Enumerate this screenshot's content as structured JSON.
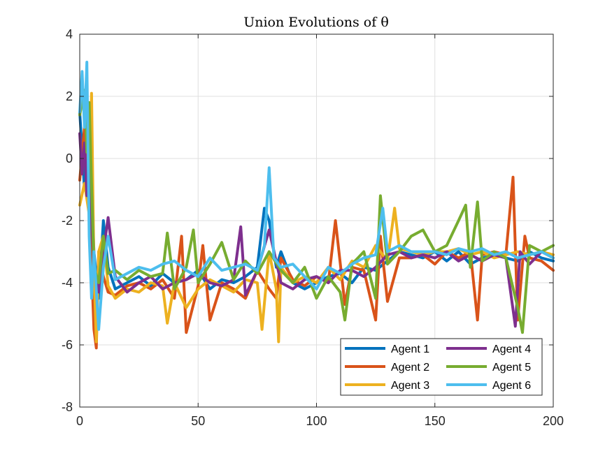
{
  "chart_data": {
    "type": "line",
    "title": "Union Evolutions of θ",
    "xlabel": "",
    "ylabel": "",
    "xlim": [
      0,
      200
    ],
    "ylim": [
      -8,
      4
    ],
    "xticks": [
      "0",
      "50",
      "100",
      "150",
      "200"
    ],
    "yticks": [
      "4",
      "2",
      "0",
      "-2",
      "-4",
      "-6",
      "-8"
    ],
    "grid": true,
    "legend_position": "bottom-right",
    "legend_columns": 2,
    "series": [
      {
        "name": "Agent 1",
        "color": "#0072BD",
        "x": [
          0,
          2,
          4,
          6,
          8,
          10,
          12,
          15,
          20,
          25,
          30,
          35,
          40,
          45,
          50,
          55,
          60,
          65,
          70,
          75,
          78,
          80,
          83,
          85,
          90,
          95,
          100,
          105,
          110,
          115,
          120,
          125,
          130,
          135,
          140,
          145,
          150,
          155,
          160,
          165,
          170,
          175,
          180,
          185,
          190,
          195,
          200
        ],
        "values": [
          1.5,
          -1.0,
          1.0,
          -3.0,
          -4.5,
          -2.0,
          -3.5,
          -4.2,
          -4.0,
          -3.8,
          -4.1,
          -3.7,
          -4.0,
          -3.9,
          -3.6,
          -4.2,
          -3.9,
          -4.0,
          -3.8,
          -3.5,
          -1.6,
          -2.0,
          -3.5,
          -3.0,
          -4.0,
          -4.2,
          -4.0,
          -3.8,
          -3.7,
          -4.0,
          -3.5,
          -3.6,
          -3.3,
          -3.0,
          -3.1,
          -3.2,
          -3.0,
          -3.3,
          -3.0,
          -3.4,
          -3.2,
          -3.1,
          -3.2,
          -3.3,
          -3.0,
          -3.2,
          -3.3
        ]
      },
      {
        "name": "Agent 2",
        "color": "#D95319",
        "x": [
          0,
          2,
          4,
          6,
          7,
          8,
          10,
          12,
          15,
          20,
          25,
          30,
          35,
          40,
          43,
          45,
          50,
          52,
          55,
          60,
          65,
          70,
          75,
          80,
          83,
          85,
          90,
          95,
          100,
          105,
          108,
          112,
          115,
          120,
          125,
          127,
          130,
          135,
          140,
          145,
          150,
          155,
          160,
          165,
          168,
          170,
          175,
          180,
          183,
          185,
          188,
          190,
          195,
          200
        ],
        "values": [
          -0.7,
          1.0,
          -1.5,
          -5.5,
          -6.1,
          -3.0,
          -3.8,
          -4.3,
          -4.4,
          -4.1,
          -4.0,
          -4.2,
          -3.9,
          -4.5,
          -2.5,
          -5.6,
          -4.1,
          -2.8,
          -5.2,
          -4.0,
          -4.2,
          -4.5,
          -3.6,
          -4.2,
          -4.5,
          -3.2,
          -3.9,
          -4.1,
          -3.8,
          -4.0,
          -2.0,
          -4.7,
          -3.5,
          -3.6,
          -5.2,
          -2.5,
          -4.6,
          -3.2,
          -3.2,
          -3.1,
          -3.4,
          -3.0,
          -3.2,
          -3.0,
          -5.2,
          -3.1,
          -3.0,
          -3.1,
          -0.6,
          -5.2,
          -2.5,
          -3.2,
          -3.3,
          -3.6
        ]
      },
      {
        "name": "Agent 3",
        "color": "#EDB120",
        "x": [
          0,
          2,
          4,
          5,
          6,
          7,
          8,
          10,
          12,
          15,
          20,
          25,
          30,
          35,
          37,
          40,
          45,
          50,
          55,
          60,
          65,
          70,
          75,
          77,
          80,
          83,
          84,
          85,
          90,
          95,
          100,
          105,
          110,
          115,
          120,
          125,
          130,
          133,
          135,
          140,
          145,
          150,
          155,
          160,
          165,
          170,
          175,
          180,
          185,
          190,
          195,
          200
        ],
        "values": [
          -1.5,
          -0.8,
          -1.8,
          2.1,
          -3.5,
          -5.9,
          -3.0,
          -2.5,
          -4.1,
          -4.5,
          -4.2,
          -4.3,
          -4.0,
          -4.1,
          -5.3,
          -4.0,
          -4.8,
          -4.2,
          -3.9,
          -4.1,
          -4.3,
          -3.9,
          -4.0,
          -5.5,
          -3.0,
          -4.2,
          -5.9,
          -3.5,
          -4.0,
          -3.8,
          -4.0,
          -3.5,
          -3.9,
          -3.3,
          -3.5,
          -2.8,
          -3.3,
          -1.6,
          -2.9,
          -3.0,
          -3.1,
          -3.0,
          -3.0,
          -2.9,
          -3.1,
          -3.0,
          -3.2,
          -3.1,
          -3.0,
          -3.1,
          -3.0,
          -3.1
        ]
      },
      {
        "name": "Agent 4",
        "color": "#7E2F8E",
        "x": [
          0,
          1,
          2,
          3,
          4,
          5,
          6,
          8,
          10,
          12,
          15,
          20,
          25,
          30,
          35,
          40,
          45,
          50,
          55,
          60,
          65,
          68,
          70,
          75,
          80,
          85,
          90,
          95,
          100,
          105,
          110,
          115,
          120,
          125,
          130,
          135,
          140,
          145,
          150,
          155,
          160,
          165,
          170,
          175,
          180,
          184,
          186,
          190,
          195,
          200
        ],
        "values": [
          0.8,
          -0.5,
          0.5,
          -1.2,
          0.9,
          -2.0,
          -3.5,
          -4.3,
          -3.0,
          -1.9,
          -3.8,
          -4.3,
          -4.0,
          -3.8,
          -4.2,
          -4.0,
          -3.9,
          -3.7,
          -4.0,
          -4.1,
          -3.9,
          -2.2,
          -4.4,
          -3.6,
          -2.3,
          -4.0,
          -4.2,
          -3.9,
          -3.8,
          -4.0,
          -3.6,
          -3.6,
          -3.8,
          -3.5,
          -3.1,
          -3.0,
          -3.2,
          -3.1,
          -3.2,
          -3.0,
          -3.3,
          -3.1,
          -3.3,
          -3.1,
          -3.2,
          -5.4,
          -3.0,
          -3.4,
          -3.0,
          -3.2
        ]
      },
      {
        "name": "Agent 5",
        "color": "#77AC30",
        "x": [
          0,
          2,
          3,
          4,
          6,
          8,
          10,
          12,
          15,
          20,
          25,
          30,
          35,
          37,
          40,
          45,
          48,
          50,
          55,
          60,
          65,
          70,
          75,
          80,
          85,
          90,
          95,
          100,
          105,
          110,
          112,
          115,
          120,
          125,
          127,
          130,
          135,
          140,
          145,
          150,
          155,
          160,
          163,
          165,
          168,
          170,
          175,
          180,
          185,
          187,
          190,
          195,
          200
        ],
        "values": [
          1.4,
          2.2,
          0.2,
          1.8,
          -3.5,
          -4.0,
          -2.5,
          -3.7,
          -3.6,
          -3.9,
          -3.6,
          -3.8,
          -3.7,
          -2.4,
          -4.2,
          -3.5,
          -2.3,
          -4.0,
          -3.4,
          -2.7,
          -3.9,
          -3.3,
          -3.7,
          -3.0,
          -3.6,
          -4.0,
          -3.5,
          -4.5,
          -3.8,
          -4.3,
          -5.2,
          -3.4,
          -3.0,
          -4.5,
          -1.2,
          -3.4,
          -3.0,
          -2.5,
          -2.3,
          -3.0,
          -2.8,
          -2.0,
          -1.5,
          -3.5,
          -1.4,
          -3.3,
          -3.0,
          -3.2,
          -4.8,
          -5.6,
          -2.8,
          -3.0,
          -2.8
        ]
      },
      {
        "name": "Agent 6",
        "color": "#4DBEEE",
        "x": [
          0,
          1,
          2,
          3,
          4,
          5,
          6,
          8,
          10,
          12,
          15,
          20,
          25,
          30,
          35,
          40,
          45,
          50,
          55,
          60,
          65,
          70,
          75,
          78,
          80,
          82,
          85,
          90,
          95,
          100,
          105,
          110,
          115,
          120,
          125,
          128,
          130,
          135,
          140,
          145,
          150,
          155,
          160,
          165,
          170,
          175,
          180,
          185,
          190,
          195,
          200
        ],
        "values": [
          1.5,
          2.8,
          1.0,
          3.1,
          -2.5,
          -4.5,
          -3.0,
          -5.5,
          -3.5,
          -2.5,
          -3.9,
          -3.7,
          -3.5,
          -3.6,
          -3.4,
          -3.3,
          -3.6,
          -3.8,
          -3.2,
          -3.6,
          -3.5,
          -3.4,
          -3.6,
          -2.8,
          -0.3,
          -3.2,
          -3.5,
          -3.4,
          -3.8,
          -4.2,
          -3.5,
          -3.7,
          -3.4,
          -3.2,
          -3.1,
          -1.6,
          -3.0,
          -2.8,
          -3.0,
          -3.0,
          -3.0,
          -3.1,
          -2.9,
          -3.0,
          -2.9,
          -3.1,
          -3.0,
          -3.2,
          -3.1,
          -3.0,
          -3.2
        ]
      }
    ]
  }
}
